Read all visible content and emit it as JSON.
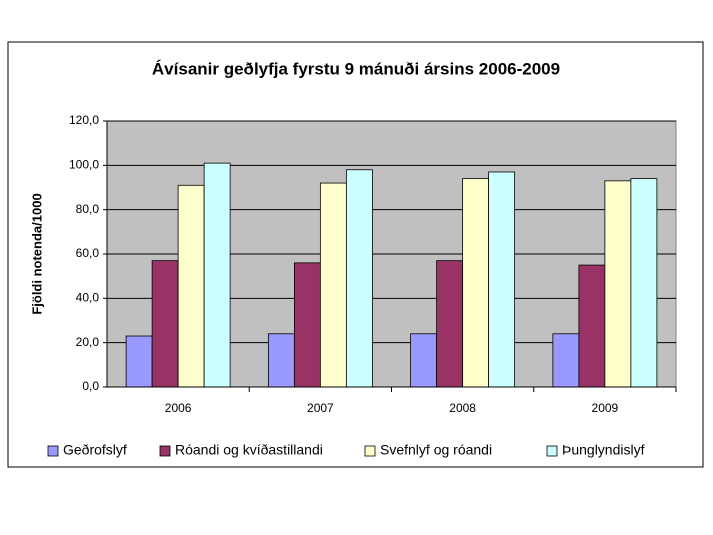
{
  "chart_data": {
    "type": "bar",
    "title": "Ávísanir geðlyfja fyrstu 9 mánuði ársins 2006-2009",
    "y_label": "Fjöldi notenda/1000",
    "categories": [
      "2006",
      "2007",
      "2008",
      "2009"
    ],
    "series": [
      {
        "name": "Geðrofslyf",
        "color": "#9999ff",
        "values": [
          23,
          24,
          24,
          24
        ]
      },
      {
        "name": "Róandi og kvíðastillandi",
        "color": "#993366",
        "values": [
          57,
          56,
          57,
          55
        ]
      },
      {
        "name": "Svefnlyf og róandi",
        "color": "#ffffcc",
        "values": [
          91,
          92,
          94,
          93
        ]
      },
      {
        "name": "Þunglyndislyf",
        "color": "#ccffff",
        "values": [
          101,
          98,
          97,
          94
        ]
      }
    ],
    "ylim": [
      0,
      120
    ],
    "yticks": [
      {
        "value": 0,
        "label": "0,0"
      },
      {
        "value": 20,
        "label": "20,0"
      },
      {
        "value": 40,
        "label": "40,0"
      },
      {
        "value": 60,
        "label": "60,0"
      },
      {
        "value": 80,
        "label": "80,0"
      },
      {
        "value": 100,
        "label": "100,0"
      },
      {
        "value": 120,
        "label": "120,0"
      }
    ],
    "grid": true,
    "legend": "bottom"
  }
}
